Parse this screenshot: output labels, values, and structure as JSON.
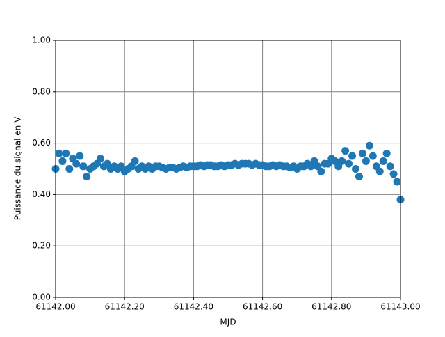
{
  "chart_data": {
    "type": "scatter",
    "xlabel": "MJD",
    "ylabel": "Puissance du signal en V",
    "color": "#1f77b4",
    "grid": true,
    "x": [
      61142.0,
      61142.01,
      61142.02,
      61142.03,
      61142.04,
      61142.05,
      61142.06,
      61142.07,
      61142.08,
      61142.09,
      61142.1,
      61142.11,
      61142.12,
      61142.13,
      61142.14,
      61142.15,
      61142.16,
      61142.17,
      61142.18,
      61142.19,
      61142.2,
      61142.21,
      61142.22,
      61142.23,
      61142.24,
      61142.25,
      61142.26,
      61142.27,
      61142.28,
      61142.29,
      61142.3,
      61142.31,
      61142.32,
      61142.33,
      61142.34,
      61142.35,
      61142.36,
      61142.37,
      61142.38,
      61142.39,
      61142.4,
      61142.41,
      61142.42,
      61142.43,
      61142.44,
      61142.45,
      61142.46,
      61142.47,
      61142.48,
      61142.49,
      61142.5,
      61142.51,
      61142.52,
      61142.53,
      61142.54,
      61142.55,
      61142.56,
      61142.57,
      61142.58,
      61142.59,
      61142.6,
      61142.61,
      61142.62,
      61142.63,
      61142.64,
      61142.65,
      61142.66,
      61142.67,
      61142.68,
      61142.69,
      61142.7,
      61142.71,
      61142.72,
      61142.73,
      61142.74,
      61142.75,
      61142.76,
      61142.77,
      61142.78,
      61142.79,
      61142.8,
      61142.81,
      61142.82,
      61142.83,
      61142.84,
      61142.85,
      61142.86,
      61142.87,
      61142.88,
      61142.89,
      61142.9,
      61142.91,
      61142.92,
      61142.93,
      61142.94,
      61142.95,
      61142.96,
      61142.97,
      61142.98,
      61142.99,
      61143.0
    ],
    "values": [
      0.5,
      0.56,
      0.53,
      0.56,
      0.5,
      0.54,
      0.52,
      0.55,
      0.51,
      0.47,
      0.5,
      0.51,
      0.52,
      0.54,
      0.51,
      0.52,
      0.5,
      0.51,
      0.5,
      0.51,
      0.49,
      0.5,
      0.51,
      0.53,
      0.5,
      0.51,
      0.5,
      0.51,
      0.5,
      0.51,
      0.51,
      0.505,
      0.5,
      0.505,
      0.505,
      0.5,
      0.505,
      0.51,
      0.505,
      0.51,
      0.51,
      0.51,
      0.515,
      0.51,
      0.515,
      0.515,
      0.51,
      0.51,
      0.515,
      0.51,
      0.515,
      0.515,
      0.52,
      0.515,
      0.52,
      0.52,
      0.52,
      0.515,
      0.52,
      0.515,
      0.515,
      0.51,
      0.51,
      0.515,
      0.51,
      0.515,
      0.51,
      0.51,
      0.505,
      0.51,
      0.5,
      0.51,
      0.51,
      0.52,
      0.51,
      0.53,
      0.51,
      0.49,
      0.52,
      0.52,
      0.54,
      0.53,
      0.51,
      0.53,
      0.57,
      0.52,
      0.55,
      0.5,
      0.47,
      0.56,
      0.53,
      0.59,
      0.55,
      0.51,
      0.49,
      0.53,
      0.56,
      0.51,
      0.48,
      0.45,
      0.38
    ],
    "xlim": [
      61142.0,
      61143.0
    ],
    "xticks": [
      {
        "value": 61142.0,
        "label": "61142.00"
      },
      {
        "value": 61142.2,
        "label": "61142.20"
      },
      {
        "value": 61142.4,
        "label": "61142.40"
      },
      {
        "value": 61142.6,
        "label": "61142.60"
      },
      {
        "value": 61142.8,
        "label": "61142.80"
      },
      {
        "value": 61143.0,
        "label": "61143.00"
      }
    ],
    "ylim": [
      0,
      1
    ],
    "yticks": [
      {
        "value": 0,
        "label": "0.00"
      },
      {
        "value": 0.2,
        "label": "0.20"
      },
      {
        "value": 0.4,
        "label": "0.40"
      },
      {
        "value": 0.6,
        "label": "0.60"
      },
      {
        "value": 0.8,
        "label": "0.80"
      },
      {
        "value": 1,
        "label": "1.00"
      }
    ]
  }
}
